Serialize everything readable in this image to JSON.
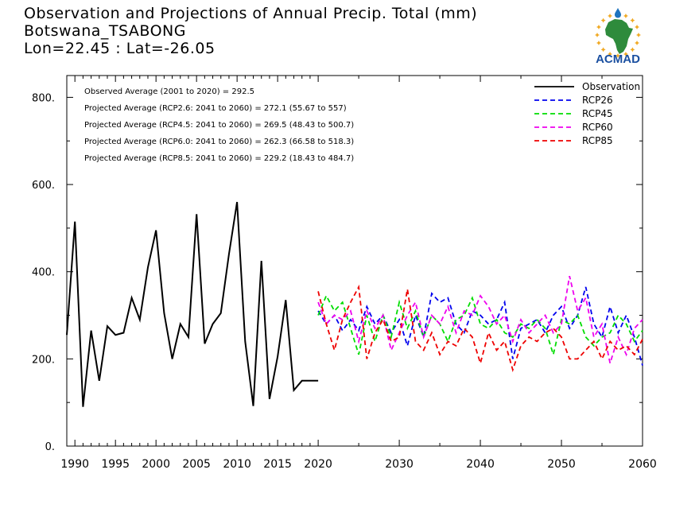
{
  "header": {
    "line1": "Observation and Projections of Annual Precip. Total (mm)",
    "line2": "Botswana_TSABONG",
    "line3": "Lon=22.45 : Lat=-26.05"
  },
  "logo": {
    "text": "ACMAD",
    "colors": {
      "africa": "#2e8b3c",
      "ring": "#f0a820",
      "drop": "#1e73be",
      "text": "#1a4fa0"
    }
  },
  "stats": [
    "Observed Average (2001 to 2020) = 292.5",
    "Projected Average (RCP2.6: 2041 to 2060) = 272.1 (55.67 to 557)",
    "Projected Average (RCP4.5: 2041 to 2060) = 269.5 (48.43 to 500.7)",
    "Projected Average (RCP6.0: 2041 to 2060) = 262.3 (66.58 to 518.3)",
    "Projected Average (RCP8.5: 2041 to 2060) = 229.2 (18.43 to 484.7)"
  ],
  "chart_data": {
    "type": "line",
    "xlim": [
      1989,
      2060
    ],
    "ylim": [
      0,
      850
    ],
    "x_ticks": [
      1990,
      1995,
      2000,
      2005,
      2010,
      2015,
      2020,
      2030,
      2040,
      2050,
      2060
    ],
    "x_tick_labels": [
      "1990",
      "1995",
      "2000",
      "2005",
      "2010",
      "2015",
      "2020",
      "2030",
      "2040",
      "2050",
      "2060"
    ],
    "y_ticks": [
      0,
      200,
      400,
      600,
      800
    ],
    "y_tick_labels": [
      "0.",
      "200.",
      "400.",
      "600.",
      "800."
    ],
    "legend_position": "top-right",
    "series": [
      {
        "name": "Observation",
        "color": "#000000",
        "dash": "solid",
        "x": [
          1989,
          1990,
          1991,
          1992,
          1993,
          1994,
          1995,
          1996,
          1997,
          1998,
          1999,
          2000,
          2001,
          2002,
          2003,
          2004,
          2005,
          2006,
          2007,
          2008,
          2009,
          2010,
          2011,
          2012,
          2013,
          2014,
          2015,
          2016,
          2017,
          2018,
          2019,
          2020
        ],
        "values": [
          255,
          515,
          90,
          265,
          150,
          275,
          255,
          260,
          340,
          290,
          410,
          495,
          305,
          200,
          280,
          250,
          532,
          235,
          280,
          305,
          440,
          560,
          240,
          92,
          425,
          108,
          205,
          335,
          128,
          150,
          150,
          150
        ]
      },
      {
        "name": "RCP26",
        "color": "#0000ee",
        "dash": "dashed",
        "x": [
          2020,
          2021,
          2022,
          2023,
          2024,
          2025,
          2026,
          2027,
          2028,
          2029,
          2030,
          2031,
          2032,
          2033,
          2034,
          2035,
          2036,
          2037,
          2038,
          2039,
          2040,
          2041,
          2042,
          2043,
          2044,
          2045,
          2046,
          2047,
          2048,
          2049,
          2050,
          2051,
          2052,
          2053,
          2054,
          2055,
          2056,
          2057,
          2058,
          2059,
          2060
        ],
        "values": [
          310,
          280,
          300,
          265,
          290,
          265,
          320,
          280,
          300,
          260,
          290,
          230,
          300,
          250,
          350,
          330,
          340,
          280,
          260,
          310,
          300,
          280,
          290,
          330,
          200,
          270,
          280,
          290,
          260,
          300,
          320,
          270,
          300,
          365,
          280,
          250,
          320,
          260,
          300,
          250,
          185
        ]
      },
      {
        "name": "RCP45",
        "color": "#00dd00",
        "dash": "dashed",
        "x": [
          2020,
          2021,
          2022,
          2023,
          2024,
          2025,
          2026,
          2027,
          2028,
          2029,
          2030,
          2031,
          2032,
          2033,
          2034,
          2035,
          2036,
          2037,
          2038,
          2039,
          2040,
          2041,
          2042,
          2043,
          2044,
          2045,
          2046,
          2047,
          2048,
          2049,
          2050,
          2051,
          2052,
          2053,
          2054,
          2055,
          2056,
          2057,
          2058,
          2059,
          2060
        ],
        "values": [
          300,
          345,
          310,
          330,
          270,
          210,
          300,
          240,
          300,
          250,
          330,
          270,
          310,
          250,
          300,
          280,
          240,
          290,
          300,
          340,
          280,
          270,
          290,
          260,
          250,
          280,
          270,
          290,
          270,
          210,
          290,
          280,
          300,
          250,
          230,
          250,
          260,
          300,
          280,
          240,
          265
        ]
      },
      {
        "name": "RCP60",
        "color": "#ee00ee",
        "dash": "dashed",
        "x": [
          2020,
          2021,
          2022,
          2023,
          2024,
          2025,
          2026,
          2027,
          2028,
          2029,
          2030,
          2031,
          2032,
          2033,
          2034,
          2035,
          2036,
          2037,
          2038,
          2039,
          2040,
          2041,
          2042,
          2043,
          2044,
          2045,
          2046,
          2047,
          2048,
          2049,
          2050,
          2051,
          2052,
          2053,
          2054,
          2055,
          2056,
          2057,
          2058,
          2059,
          2060
        ],
        "values": [
          330,
          280,
          300,
          290,
          310,
          240,
          310,
          270,
          300,
          220,
          260,
          300,
          330,
          250,
          300,
          280,
          320,
          260,
          310,
          300,
          345,
          320,
          280,
          300,
          240,
          290,
          260,
          280,
          300,
          260,
          280,
          390,
          310,
          340,
          250,
          280,
          190,
          250,
          210,
          270,
          290
        ]
      },
      {
        "name": "RCP85",
        "color": "#ee0000",
        "dash": "dashed",
        "x": [
          2020,
          2021,
          2022,
          2023,
          2024,
          2025,
          2026,
          2027,
          2028,
          2029,
          2030,
          2031,
          2032,
          2033,
          2034,
          2035,
          2036,
          2037,
          2038,
          2039,
          2040,
          2041,
          2042,
          2043,
          2044,
          2045,
          2046,
          2047,
          2048,
          2049,
          2050,
          2051,
          2052,
          2053,
          2054,
          2055,
          2056,
          2057,
          2058,
          2059,
          2060
        ],
        "values": [
          355,
          280,
          220,
          290,
          330,
          365,
          200,
          260,
          290,
          240,
          250,
          360,
          240,
          220,
          260,
          210,
          240,
          230,
          270,
          250,
          190,
          260,
          220,
          240,
          175,
          230,
          250,
          240,
          260,
          270,
          250,
          200,
          200,
          220,
          240,
          200,
          240,
          220,
          230,
          210,
          245
        ]
      }
    ]
  }
}
